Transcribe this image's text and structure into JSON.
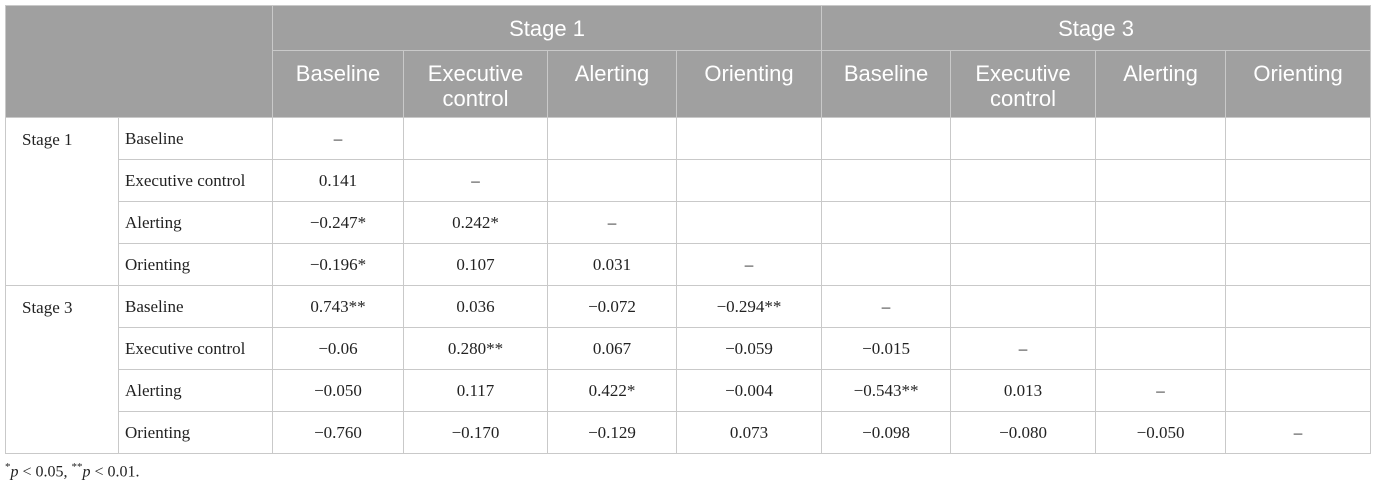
{
  "table": {
    "header": {
      "groups": [
        "Stage 1",
        "Stage 3"
      ],
      "columns": [
        "Baseline",
        "Executive control",
        "Alerting",
        "Orienting",
        "Baseline",
        "Executive control",
        "Alerting",
        "Orienting"
      ]
    },
    "sections": [
      {
        "label": "Stage 1",
        "rows": [
          {
            "label": "Baseline",
            "cells": [
              "–"
            ]
          },
          {
            "label": "Executive control",
            "cells": [
              "0.141",
              "–"
            ]
          },
          {
            "label": "Alerting",
            "cells": [
              "−0.247*",
              "0.242*",
              "–"
            ]
          },
          {
            "label": "Orienting",
            "cells": [
              "−0.196*",
              "0.107",
              "0.031",
              "–"
            ]
          }
        ]
      },
      {
        "label": "Stage 3",
        "rows": [
          {
            "label": "Baseline",
            "cells": [
              "0.743**",
              "0.036",
              "−0.072",
              "−0.294**",
              "–"
            ]
          },
          {
            "label": "Executive control",
            "cells": [
              "−0.06",
              "0.280**",
              "0.067",
              "−0.059",
              "−0.015",
              "–"
            ]
          },
          {
            "label": "Alerting",
            "cells": [
              "−0.050",
              "0.117",
              "0.422*",
              "−0.004",
              "−0.543**",
              "0.013",
              "–"
            ]
          },
          {
            "label": "Orienting",
            "cells": [
              "−0.760",
              "−0.170",
              "−0.129",
              "0.073",
              "−0.098",
              "−0.080",
              "−0.050",
              "–"
            ]
          }
        ]
      }
    ]
  },
  "footnote": [
    "*",
    "p",
    " < 0.05, ",
    "**",
    "p",
    " < 0.01."
  ]
}
